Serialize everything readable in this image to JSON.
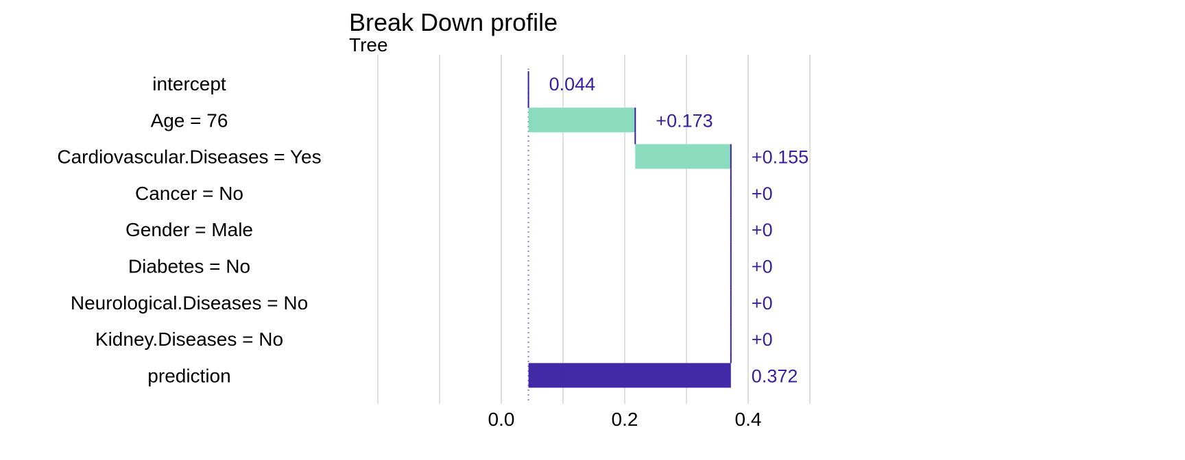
{
  "chart_data": {
    "type": "waterfall",
    "title": "Break Down profile",
    "subtitle": "Tree",
    "xlim": [
      -0.2,
      0.55
    ],
    "x_ticks": [
      0.0,
      0.2,
      0.4
    ],
    "x_tick_labels": [
      "0.0",
      "0.2",
      "0.4"
    ],
    "gridlines": [
      -0.2,
      -0.1,
      0.0,
      0.1,
      0.2,
      0.3,
      0.4,
      0.5
    ],
    "grid": true,
    "legend": "none",
    "baseline": 0.044,
    "rows": [
      {
        "label": "intercept",
        "start": 0.044,
        "end": 0.044,
        "value_label": "0.044",
        "kind": "intercept"
      },
      {
        "label": "Age = 76",
        "start": 0.044,
        "end": 0.217,
        "value_label": "+0.173",
        "kind": "positive"
      },
      {
        "label": "Cardiovascular.Diseases = Yes",
        "start": 0.217,
        "end": 0.372,
        "value_label": "+0.155",
        "kind": "positive"
      },
      {
        "label": "Cancer = No",
        "start": 0.372,
        "end": 0.372,
        "value_label": "+0",
        "kind": "zero"
      },
      {
        "label": "Gender = Male",
        "start": 0.372,
        "end": 0.372,
        "value_label": "+0",
        "kind": "zero"
      },
      {
        "label": "Diabetes = No",
        "start": 0.372,
        "end": 0.372,
        "value_label": "+0",
        "kind": "zero"
      },
      {
        "label": "Neurological.Diseases = No",
        "start": 0.372,
        "end": 0.372,
        "value_label": "+0",
        "kind": "zero"
      },
      {
        "label": "Kidney.Diseases = No",
        "start": 0.372,
        "end": 0.372,
        "value_label": "+0",
        "kind": "zero"
      },
      {
        "label": "prediction",
        "start": 0.044,
        "end": 0.372,
        "value_label": "0.372",
        "kind": "prediction"
      }
    ],
    "colors": {
      "positive": "#8bdcbe",
      "prediction": "#371ea3",
      "connector": "#371ea3",
      "label": "#371ea3",
      "grid": "#e0e0e0",
      "baseline": "#8a7fd6"
    }
  }
}
